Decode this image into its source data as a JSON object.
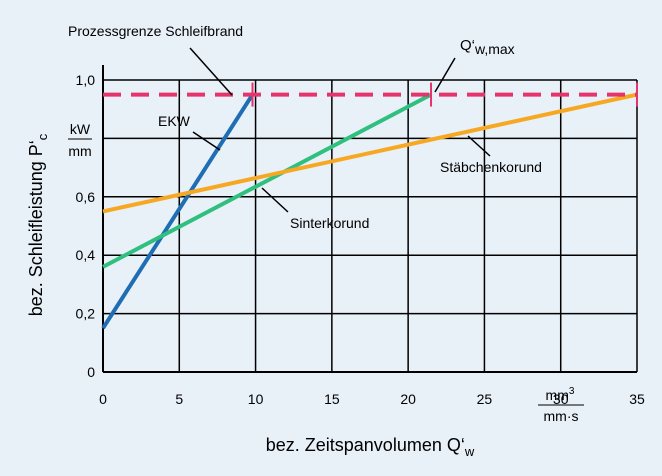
{
  "chart_data": {
    "type": "line",
    "xlabel": "bez. Zeitspanvolumen Q‘",
    "xlabel_sub": "w",
    "ylabel": "bez. Schleifleistung P‘",
    "ylabel_sub": "c",
    "x_unit": {
      "num": "mm",
      "num_sup": "3",
      "den": "mm·s"
    },
    "y_unit": {
      "num": "kW",
      "den": "mm"
    },
    "xlim": [
      0,
      35
    ],
    "ylim": [
      0,
      1.0
    ],
    "xticks": [
      0,
      5,
      10,
      15,
      20,
      25,
      30,
      35
    ],
    "yticks": [
      0,
      {
        "value": 0.2,
        "label": "0,2"
      },
      {
        "value": 0.4,
        "label": "0,4"
      },
      {
        "value": 0.6,
        "label": "0,6"
      },
      {
        "value": 0.8,
        "label": null
      },
      {
        "value": 1.0,
        "label": "1,0"
      }
    ],
    "grid": true,
    "series": [
      {
        "name": "EKW",
        "color": "#1f6db3",
        "x": [
          0,
          9.8
        ],
        "values": [
          0.15,
          0.95
        ]
      },
      {
        "name": "Sinterkorund",
        "color": "#2fbf7f",
        "x": [
          0,
          21.5
        ],
        "values": [
          0.36,
          0.95
        ]
      },
      {
        "name": "Stäbchenkorund",
        "color": "#f7a823",
        "x": [
          0,
          35
        ],
        "values": [
          0.55,
          0.95
        ]
      }
    ],
    "limit": {
      "label": "Prozessgrenze Schleifbrand",
      "value": 0.95,
      "color": "#e5336b",
      "markers_x": [
        9.8,
        21.5,
        35
      ]
    },
    "qmax": {
      "label": "Q‘",
      "sub": "w,max"
    }
  }
}
